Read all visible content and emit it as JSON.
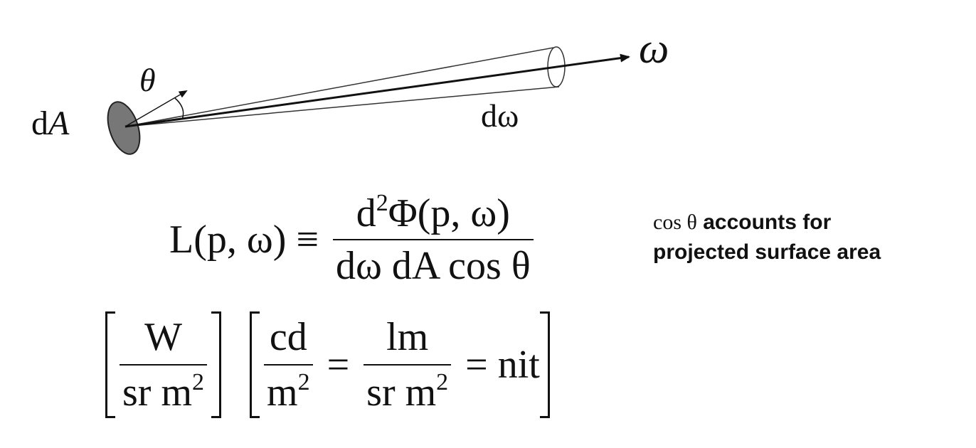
{
  "diagram": {
    "label_area": "dA",
    "label_angle": "θ",
    "label_direction": "ω",
    "label_solid_angle": "dω"
  },
  "equation": {
    "lhs": "L(p, ω)",
    "equiv": "≡",
    "numerator_d": "d",
    "numerator_exp": "2",
    "numerator_rest": "Φ(p, ω)",
    "denominator": "dω dA cos θ"
  },
  "note": {
    "cos_symbol": "cos θ",
    "line1_rest": " accounts for",
    "line2": "projected surface area"
  },
  "units": {
    "first_num": "W",
    "first_den_base": "sr m",
    "first_den_exp": "2",
    "second_num": "cd",
    "second_den_base": "m",
    "second_den_exp": "2",
    "equals": "=",
    "third_num": "lm",
    "third_den_base": "sr m",
    "third_den_exp": "2",
    "last": "nit"
  },
  "colors": {
    "ink": "#111111",
    "surface_patch": "#777777",
    "background": "#ffffff"
  }
}
